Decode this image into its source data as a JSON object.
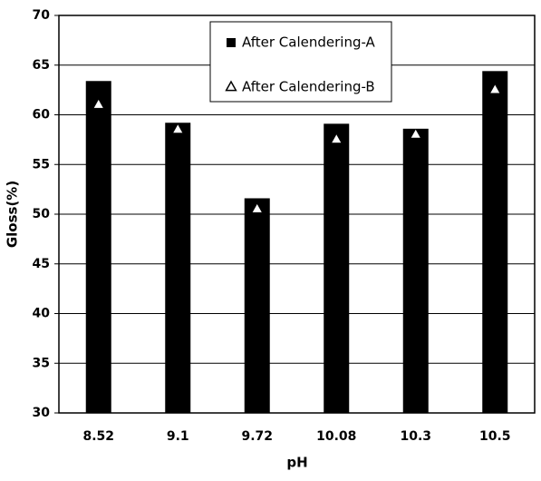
{
  "chart_data": {
    "type": "bar",
    "x_label": "pH",
    "y_label": "Gloss(%)",
    "categories": [
      "8.52",
      "9.1",
      "9.72",
      "10.08",
      "10.3",
      "10.5"
    ],
    "series": [
      {
        "name": "After Calendering-A",
        "kind": "bar",
        "color": "#000000",
        "values": [
          63.4,
          59.2,
          51.6,
          59.1,
          58.6,
          64.4
        ]
      },
      {
        "name": "After Calendering-B",
        "kind": "marker",
        "color": "#ffffff",
        "values": [
          61.0,
          58.5,
          50.5,
          57.5,
          58.0,
          62.5
        ]
      }
    ],
    "ylim": [
      30,
      70
    ],
    "yticks": [
      30,
      35,
      40,
      45,
      50,
      55,
      60,
      65,
      70
    ],
    "grid": true
  }
}
